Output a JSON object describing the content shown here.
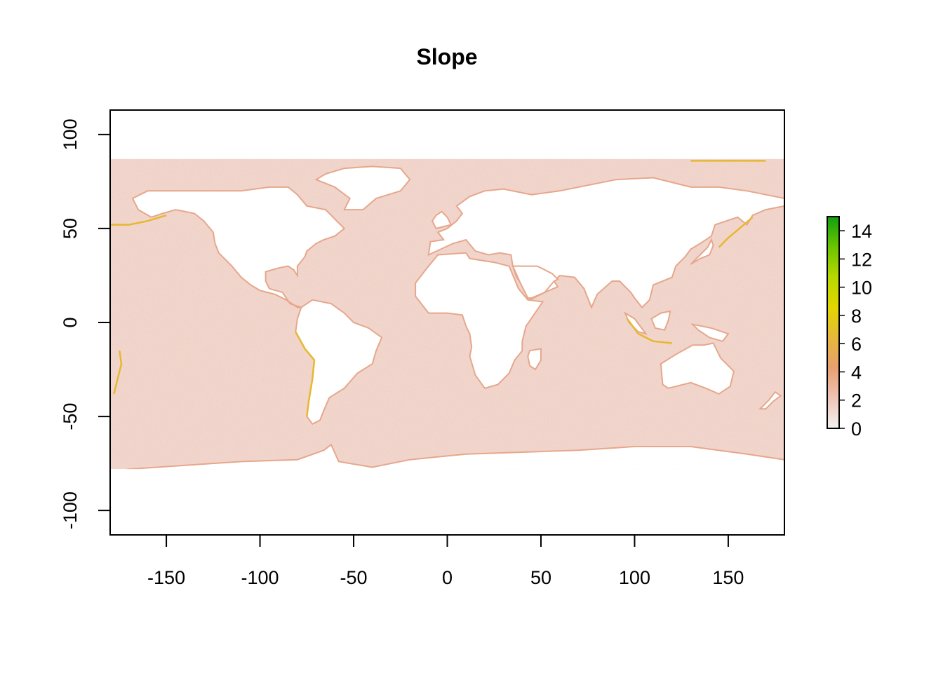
{
  "chart_data": {
    "type": "heatmap",
    "title": "Slope",
    "xlabel": "",
    "ylabel": "",
    "xlim": [
      -180,
      180
    ],
    "ylim": [
      -113,
      113
    ],
    "data_extent": {
      "x": [
        -180,
        180
      ],
      "y": [
        -78,
        87
      ]
    },
    "x_ticks": [
      -150,
      -100,
      -50,
      0,
      50,
      100,
      150
    ],
    "y_ticks": [
      -100,
      -50,
      0,
      50,
      100
    ],
    "legend": {
      "position": "right",
      "range": [
        0,
        15
      ],
      "ticks": [
        0,
        2,
        4,
        6,
        8,
        10,
        12,
        14
      ],
      "colors": [
        "#f2f2f2",
        "#eec4b6",
        "#e8a070",
        "#e6b83a",
        "#e2d700",
        "#b8d800",
        "#6cc400",
        "#10a010"
      ]
    },
    "colors": {
      "no_data": "#ffffff",
      "low_slope": "#f0eeee",
      "mid_slope": "#f0d5cc",
      "ridge": "#e9aa8e",
      "high_slope": "#e6b830",
      "land": "#ffffff"
    }
  }
}
